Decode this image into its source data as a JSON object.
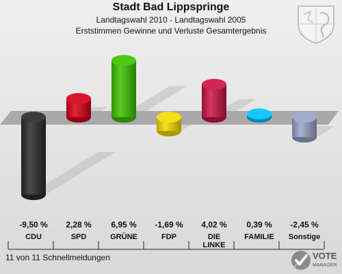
{
  "header": {
    "title": "Stadt Bad Lippspringe",
    "subtitle_1": "Landtagswahl 2010 - Landtagswahl 2005",
    "subtitle_2": "Erststimmen Gewinne und Verluste Gesamtergebnis"
  },
  "footer": {
    "status": "11 von 11 Schnellmeldungen"
  },
  "logo": {
    "name": "VOTE",
    "sub": "MANAGER",
    "icon": "vote-manager-logo"
  },
  "crest": {
    "icon": "coat-of-arms-icon"
  },
  "chart_data": {
    "type": "bar",
    "categories": [
      "CDU",
      "SPD",
      "GRÜNE",
      "FDP",
      "DIE LINKE",
      "FAMILIE",
      "Sonstige"
    ],
    "values": [
      -9.5,
      2.28,
      6.95,
      -1.69,
      4.02,
      0.39,
      -2.45
    ],
    "value_labels": [
      "-9,50 %",
      "2,28 %",
      "6,95 %",
      "-1,69 %",
      "4,02 %",
      "0,39 %",
      "-2,45 %"
    ],
    "colors": [
      "#2b2b2b",
      "#d9001a",
      "#3fc400",
      "#f5dc00",
      "#cc1445",
      "#00c3ff",
      "#9aa4c8"
    ],
    "title": "Stadt Bad Lippspringe"
  }
}
